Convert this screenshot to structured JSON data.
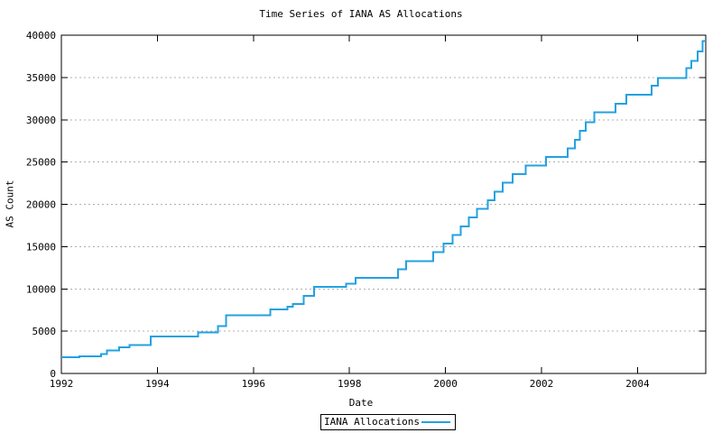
{
  "colors": {
    "line": "#23A1E0",
    "grid": "#b0b0b0",
    "frame": "#000000",
    "background": "#ffffff"
  },
  "legend": {
    "label": "IANA Allocations"
  },
  "chart_data": {
    "type": "line",
    "step": true,
    "title": "Time Series of IANA AS Allocations",
    "xlabel": "Date",
    "ylabel": "AS Count",
    "xlim": [
      1992,
      2005.42
    ],
    "ylim": [
      0,
      40000
    ],
    "xticks": [
      1992,
      1994,
      1996,
      1998,
      2000,
      2002,
      2004
    ],
    "yticks": [
      0,
      5000,
      10000,
      15000,
      20000,
      25000,
      30000,
      35000,
      40000
    ],
    "grid": "horizontal-dotted",
    "legend_position": "bottom-center",
    "series": [
      {
        "name": "IANA Allocations",
        "color": "#23A1E0",
        "points": [
          [
            1992.0,
            1900
          ],
          [
            1992.38,
            2050
          ],
          [
            1992.83,
            2300
          ],
          [
            1992.95,
            2700
          ],
          [
            1993.2,
            3100
          ],
          [
            1993.42,
            3350
          ],
          [
            1993.86,
            4400
          ],
          [
            1994.85,
            4850
          ],
          [
            1995.26,
            5600
          ],
          [
            1995.43,
            6900
          ],
          [
            1996.35,
            7600
          ],
          [
            1996.71,
            7900
          ],
          [
            1996.82,
            8200
          ],
          [
            1997.05,
            9200
          ],
          [
            1997.26,
            10250
          ],
          [
            1997.93,
            10600
          ],
          [
            1998.13,
            11300
          ],
          [
            1999.01,
            12300
          ],
          [
            1999.18,
            13300
          ],
          [
            1999.74,
            14350
          ],
          [
            1999.96,
            15350
          ],
          [
            2000.15,
            16400
          ],
          [
            2000.32,
            17400
          ],
          [
            2000.49,
            18450
          ],
          [
            2000.66,
            19450
          ],
          [
            2000.88,
            20500
          ],
          [
            2001.02,
            21500
          ],
          [
            2001.19,
            22550
          ],
          [
            2001.4,
            23550
          ],
          [
            2001.67,
            24600
          ],
          [
            2002.09,
            25600
          ],
          [
            2002.54,
            26600
          ],
          [
            2002.69,
            27650
          ],
          [
            2002.8,
            28700
          ],
          [
            2002.92,
            29700
          ],
          [
            2003.1,
            30900
          ],
          [
            2003.54,
            31900
          ],
          [
            2003.77,
            32950
          ],
          [
            2004.29,
            34050
          ],
          [
            2004.42,
            34950
          ],
          [
            2005.02,
            36100
          ],
          [
            2005.12,
            36950
          ],
          [
            2005.25,
            38100
          ],
          [
            2005.35,
            39300
          ]
        ]
      }
    ]
  }
}
